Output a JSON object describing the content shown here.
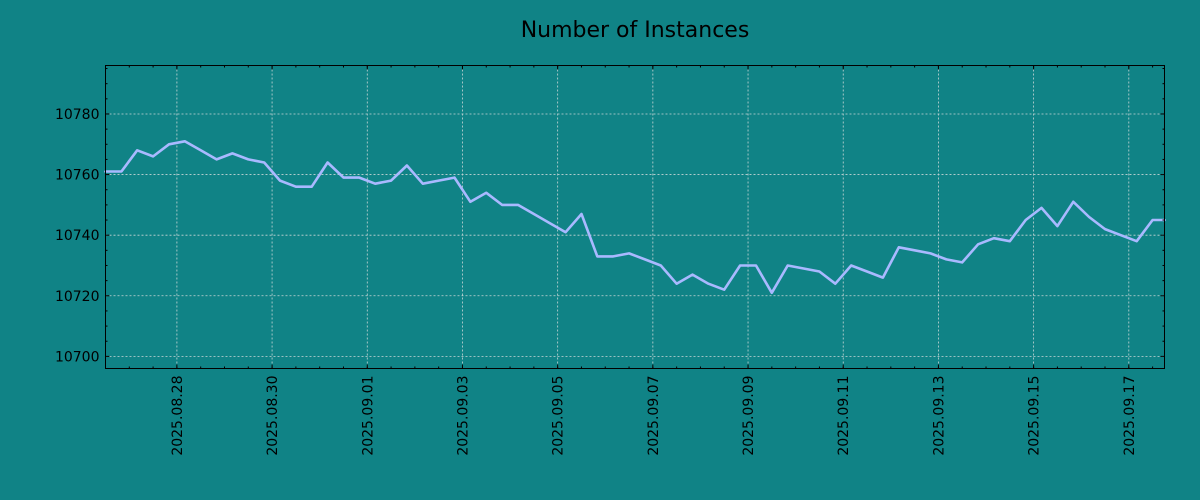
{
  "chart_data": {
    "type": "line",
    "title": "Number of Instances",
    "xlabel": "",
    "ylabel": "",
    "xlim": [
      "2025-08-26T12:00",
      "2025-09-17T18:00"
    ],
    "ylim": [
      10696,
      10796
    ],
    "yticks": [
      10700,
      10720,
      10740,
      10760,
      10780
    ],
    "xticks": [
      "2025.08.28",
      "2025.08.30",
      "2025.09.01",
      "2025.09.03",
      "2025.09.05",
      "2025.09.07",
      "2025.09.09",
      "2025.09.11",
      "2025.09.13",
      "2025.09.15",
      "2025.09.17"
    ],
    "grid": true,
    "legend": "none",
    "colors": {
      "background": "#108386",
      "line": "#a9b9ff",
      "grid": "#c8d6d6",
      "axis": "#000000"
    },
    "series": [
      {
        "x": [
          "2025-08-26T12:00",
          "2025-08-26T20:00",
          "2025-08-27T04:00",
          "2025-08-27T12:00",
          "2025-08-27T20:00",
          "2025-08-28T04:00",
          "2025-08-28T12:00",
          "2025-08-28T20:00",
          "2025-08-29T04:00",
          "2025-08-29T12:00",
          "2025-08-29T20:00",
          "2025-08-30T04:00",
          "2025-08-30T12:00",
          "2025-08-30T20:00",
          "2025-08-31T04:00",
          "2025-08-31T12:00",
          "2025-08-31T20:00",
          "2025-09-01T04:00",
          "2025-09-01T12:00",
          "2025-09-01T20:00",
          "2025-09-02T04:00",
          "2025-09-02T12:00",
          "2025-09-02T20:00",
          "2025-09-03T04:00",
          "2025-09-03T12:00",
          "2025-09-03T20:00",
          "2025-09-04T04:00",
          "2025-09-04T12:00",
          "2025-09-04T20:00",
          "2025-09-05T04:00",
          "2025-09-05T12:00",
          "2025-09-05T20:00",
          "2025-09-06T04:00",
          "2025-09-06T12:00",
          "2025-09-06T20:00",
          "2025-09-07T04:00",
          "2025-09-07T12:00",
          "2025-09-07T20:00",
          "2025-09-08T04:00",
          "2025-09-08T12:00",
          "2025-09-08T20:00",
          "2025-09-09T04:00",
          "2025-09-09T12:00",
          "2025-09-09T20:00",
          "2025-09-10T04:00",
          "2025-09-10T12:00",
          "2025-09-10T20:00",
          "2025-09-11T04:00",
          "2025-09-11T12:00",
          "2025-09-11T20:00",
          "2025-09-12T04:00",
          "2025-09-12T12:00",
          "2025-09-12T20:00",
          "2025-09-13T04:00",
          "2025-09-13T12:00",
          "2025-09-13T20:00",
          "2025-09-14T04:00",
          "2025-09-14T12:00",
          "2025-09-14T20:00",
          "2025-09-15T04:00",
          "2025-09-15T12:00",
          "2025-09-15T20:00",
          "2025-09-16T04:00",
          "2025-09-16T12:00",
          "2025-09-16T20:00",
          "2025-09-17T04:00",
          "2025-09-17T12:00",
          "2025-09-17T18:00"
        ],
        "y": [
          10761,
          10761,
          10768,
          10766,
          10770,
          10771,
          10768,
          10765,
          10767,
          10765,
          10764,
          10758,
          10756,
          10756,
          10764,
          10759,
          10759,
          10757,
          10758,
          10763,
          10757,
          10758,
          10759,
          10751,
          10754,
          10750,
          10750,
          10747,
          10744,
          10741,
          10747,
          10733,
          10733,
          10734,
          10732,
          10730,
          10724,
          10727,
          10724,
          10722,
          10730,
          10730,
          10721,
          10730,
          10729,
          10728,
          10724,
          10730,
          10728,
          10726,
          10736,
          10735,
          10734,
          10732,
          10731,
          10737,
          10739,
          10738,
          10745,
          10749,
          10743,
          10751,
          10746,
          10742,
          10740,
          10738,
          10745,
          10745
        ]
      }
    ]
  }
}
